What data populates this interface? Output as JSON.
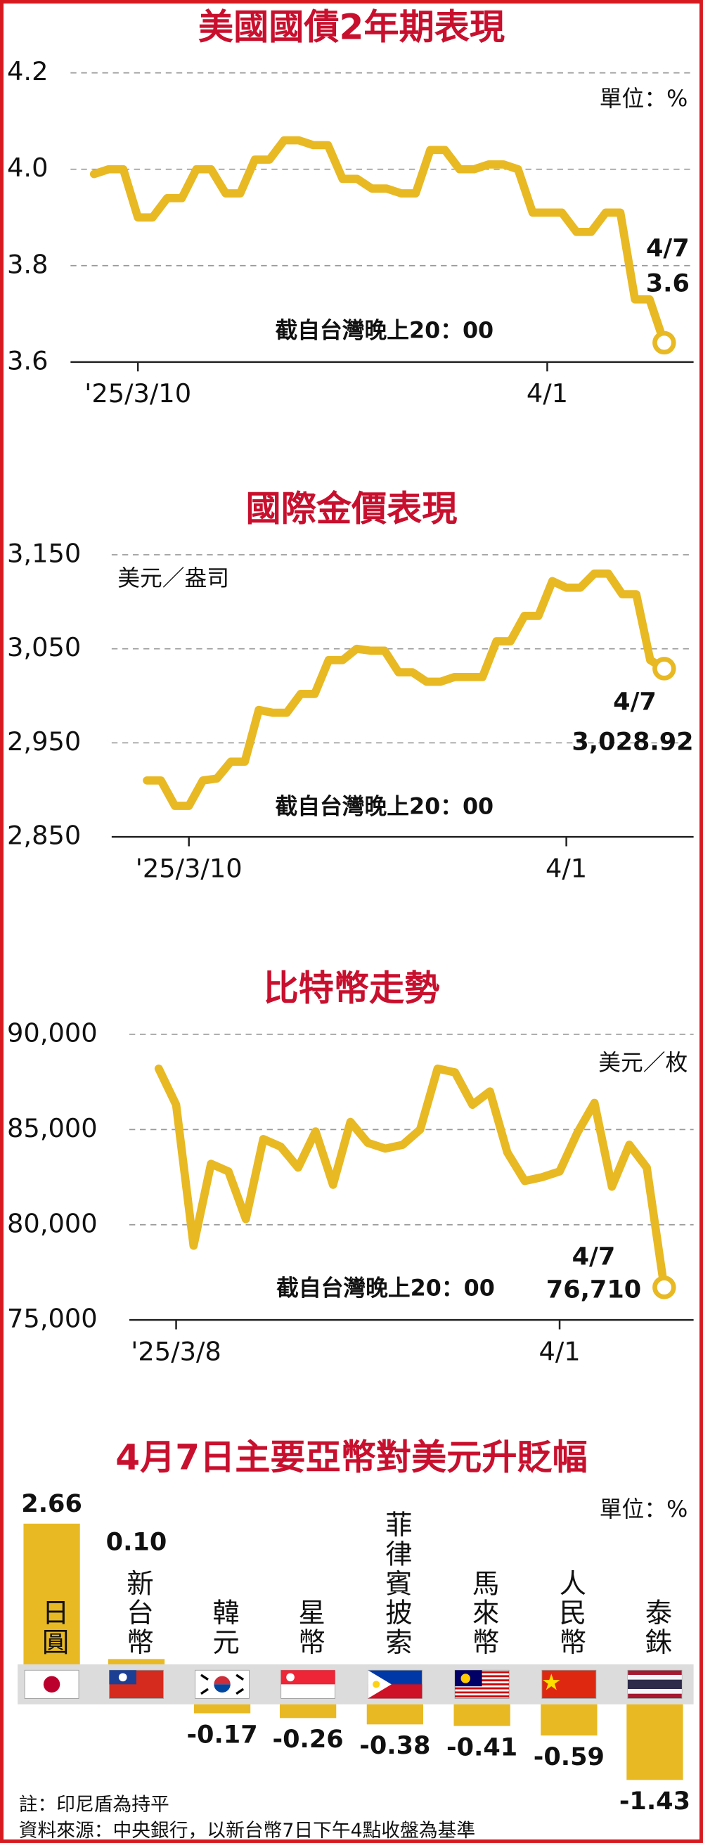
{
  "chart_data": [
    {
      "type": "line",
      "title": "美國國債2年期表現",
      "unit": "單位：%",
      "note": "截自台灣晚上20：00",
      "end_date": "4/7",
      "color": "#e8b923",
      "grid": true,
      "categories": [
        null,
        null,
        null,
        "'25/3/10",
        null,
        null,
        null,
        null,
        null,
        null,
        null,
        null,
        null,
        null,
        null,
        null,
        null,
        null,
        null,
        null,
        null,
        null,
        null,
        null,
        null,
        null,
        null,
        null,
        null,
        null,
        null,
        "4/1",
        null,
        null,
        null,
        null,
        null,
        null,
        null,
        null
      ],
      "values": [
        3.99,
        4.0,
        4.0,
        3.9,
        3.9,
        3.94,
        3.94,
        4.0,
        4.0,
        3.95,
        3.95,
        4.02,
        4.02,
        4.06,
        4.06,
        4.05,
        4.05,
        3.98,
        3.98,
        3.96,
        3.96,
        3.95,
        3.95,
        4.04,
        4.04,
        4.0,
        4.0,
        4.01,
        4.01,
        4.0,
        3.91,
        3.91,
        3.91,
        3.87,
        3.87,
        3.91,
        3.91,
        3.73,
        3.73,
        3.64
      ],
      "value_labels": [
        null,
        null,
        null,
        null,
        null,
        null,
        null,
        null,
        null,
        null,
        null,
        null,
        null,
        null,
        null,
        null,
        null,
        null,
        null,
        null,
        null,
        null,
        null,
        null,
        null,
        null,
        null,
        null,
        null,
        null,
        null,
        null,
        null,
        null,
        null,
        null,
        null,
        null,
        null,
        "3.6"
      ],
      "ylim": [
        3.6,
        4.2
      ],
      "yticks": [
        3.6,
        3.8,
        {
          "value": 4,
          "label": "4.0"
        },
        4.2
      ]
    },
    {
      "type": "line",
      "title": "國際金價表現",
      "unit": "美元／盎司",
      "note": "截自台灣晚上20：00",
      "end_date": "4/7",
      "color": "#e8b923",
      "grid": true,
      "categories": [
        null,
        null,
        null,
        "'25/3/10",
        null,
        null,
        null,
        null,
        null,
        null,
        null,
        null,
        null,
        null,
        null,
        null,
        null,
        null,
        null,
        null,
        null,
        null,
        null,
        null,
        null,
        null,
        null,
        null,
        null,
        null,
        "4/1",
        null,
        null,
        null,
        null,
        null,
        null,
        null
      ],
      "values": [
        2910,
        2910,
        2883,
        2883,
        2910,
        2912,
        2930,
        2930,
        2985,
        2982,
        2982,
        3002,
        3002,
        3038,
        3038,
        3050,
        3048,
        3048,
        3025,
        3025,
        3015,
        3015,
        3020,
        3020,
        3020,
        3058,
        3058,
        3085,
        3085,
        3122,
        3115,
        3115,
        3130,
        3130,
        3108,
        3108,
        3038,
        3028.92
      ],
      "value_labels": [
        null,
        null,
        null,
        null,
        null,
        null,
        null,
        null,
        null,
        null,
        null,
        null,
        null,
        null,
        null,
        null,
        null,
        null,
        null,
        null,
        null,
        null,
        null,
        null,
        null,
        null,
        null,
        null,
        null,
        null,
        null,
        null,
        null,
        null,
        null,
        null,
        null,
        "3,028.92"
      ],
      "ylim": [
        2850,
        3150
      ],
      "yticks": [
        {
          "value": 2850,
          "label": "2,850"
        },
        {
          "value": 2950,
          "label": "2,950"
        },
        {
          "value": 3050,
          "label": "3,050"
        },
        {
          "value": 3150,
          "label": "3,150"
        }
      ]
    },
    {
      "type": "line",
      "title": "比特幣走勢",
      "unit": "美元／枚",
      "note": "截自台灣晚上20：00",
      "end_date": "4/7",
      "color": "#e8b923",
      "grid": true,
      "categories": [
        null,
        "'25/3/8",
        null,
        null,
        null,
        null,
        null,
        null,
        null,
        null,
        null,
        null,
        null,
        null,
        null,
        null,
        null,
        null,
        null,
        null,
        null,
        null,
        null,
        "4/1",
        null,
        null,
        null,
        null,
        null,
        null
      ],
      "values": [
        88200,
        86300,
        78900,
        83200,
        82800,
        80300,
        84500,
        84100,
        83000,
        84900,
        82100,
        85400,
        84300,
        84000,
        84200,
        85000,
        88200,
        88000,
        86300,
        87000,
        83800,
        82300,
        82500,
        82800,
        84800,
        86400,
        82000,
        84200,
        83000,
        76710
      ],
      "value_labels": [
        null,
        null,
        null,
        null,
        null,
        null,
        null,
        null,
        null,
        null,
        null,
        null,
        null,
        null,
        null,
        null,
        null,
        null,
        null,
        null,
        null,
        null,
        null,
        null,
        null,
        null,
        null,
        null,
        null,
        "76,710"
      ],
      "ylim": [
        75000,
        90000
      ],
      "yticks": [
        {
          "value": 75000,
          "label": "75,000"
        },
        {
          "value": 80000,
          "label": "80,000"
        },
        {
          "value": 85000,
          "label": "85,000"
        },
        {
          "value": 90000,
          "label": "90,000"
        }
      ]
    },
    {
      "type": "bar",
      "title": "4月7日主要亞幣對美元升貶幅",
      "unit": "單位：%",
      "color": "#e8b923",
      "categories": [
        "日圓",
        "新台幣",
        "韓元",
        "星幣",
        "菲律賓披索",
        "馬來幣",
        "人民幣",
        "泰銖"
      ],
      "values": [
        2.66,
        0.1,
        -0.17,
        -0.26,
        -0.38,
        -0.41,
        -0.59,
        -1.43
      ],
      "value_labels": [
        "2.66",
        "0.10",
        "-0.17",
        "-0.26",
        "-0.38",
        "-0.41",
        "-0.59",
        "-1.43"
      ],
      "notes": [
        "註：印尼盾為持平",
        "資料來源：中央銀行，以新台幣7日下午4點收盤為基準"
      ]
    }
  ]
}
